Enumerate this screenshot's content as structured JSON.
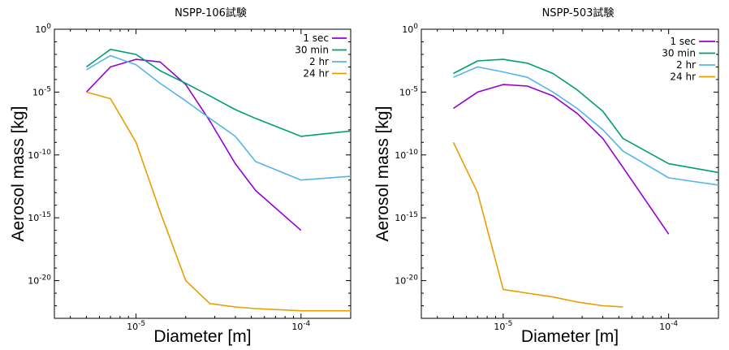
{
  "chart_data": [
    {
      "type": "line",
      "title": "NSPP-106試験",
      "xlabel": "Diameter [m]",
      "ylabel": "Aerosol mass [kg]",
      "x_scale": "log",
      "y_scale": "log",
      "xlim": [
        3.2e-06,
        0.0002
      ],
      "ylim": [
        1e-23,
        1
      ],
      "x_ticks": [
        {
          "value": 1e-05,
          "base": "10",
          "exp": "-5"
        },
        {
          "value": 0.0001,
          "base": "10",
          "exp": "-4"
        }
      ],
      "y_ticks": [
        {
          "value": 1,
          "base": "10",
          "exp": "0"
        },
        {
          "value": 1e-05,
          "base": "10",
          "exp": "-5"
        },
        {
          "value": 1e-10,
          "base": "10",
          "exp": "-10"
        },
        {
          "value": 1e-15,
          "base": "10",
          "exp": "-15"
        },
        {
          "value": 1e-20,
          "base": "10",
          "exp": "-20"
        }
      ],
      "legend_position": "top-right",
      "x": [
        5e-06,
        7e-06,
        1e-05,
        1.4e-05,
        2e-05,
        2.8e-05,
        4e-05,
        5.3e-05,
        0.0001,
        0.0002
      ],
      "series": [
        {
          "name": "1 sec",
          "color": "#9400d3",
          "x": [
            5e-06,
            7e-06,
            1e-05,
            1.4e-05,
            2e-05,
            2.8e-05,
            4e-05,
            5.3e-05,
            0.0001
          ],
          "values": [
            1e-05,
            0.001,
            0.004,
            0.0025,
            4e-05,
            5e-08,
            2e-11,
            1.5e-13,
            1e-16
          ]
        },
        {
          "name": "30 min",
          "color": "#009e73",
          "x": [
            5e-06,
            7e-06,
            1e-05,
            1.4e-05,
            2e-05,
            2.8e-05,
            4e-05,
            5.3e-05,
            0.0001,
            0.0002
          ],
          "values": [
            0.001,
            0.025,
            0.01,
            0.0005,
            5e-05,
            5e-06,
            4e-07,
            8e-08,
            3e-09,
            8e-09
          ]
        },
        {
          "name": "2 hr",
          "color": "#56b4e9",
          "x": [
            5e-06,
            7e-06,
            1e-05,
            1.4e-05,
            2e-05,
            2.8e-05,
            4e-05,
            5.3e-05,
            0.0001,
            0.0002
          ],
          "values": [
            0.0006,
            0.008,
            0.0015,
            5e-05,
            2e-06,
            8e-08,
            3e-09,
            3e-11,
            1e-12,
            2e-12
          ]
        },
        {
          "name": "24 hr",
          "color": "#e69f00",
          "x": [
            5e-06,
            7e-06,
            1e-05,
            1.4e-05,
            2e-05,
            2.8e-05,
            4e-05,
            5.3e-05,
            0.0001,
            0.0002
          ],
          "values": [
            1e-05,
            3e-06,
            1e-09,
            3e-15,
            1e-20,
            1.5e-22,
            8e-23,
            6e-23,
            4e-23,
            4e-23
          ]
        }
      ]
    },
    {
      "type": "line",
      "title": "NSPP-503試験",
      "xlabel": "Diameter [m]",
      "ylabel": "Aerosol mass [kg]",
      "x_scale": "log",
      "y_scale": "log",
      "xlim": [
        3.2e-06,
        0.0002
      ],
      "ylim": [
        1e-23,
        1
      ],
      "x_ticks": [
        {
          "value": 1e-05,
          "base": "10",
          "exp": "-5"
        },
        {
          "value": 0.0001,
          "base": "10",
          "exp": "-4"
        }
      ],
      "y_ticks": [
        {
          "value": 1,
          "base": "10",
          "exp": "0"
        },
        {
          "value": 1e-05,
          "base": "10",
          "exp": "-5"
        },
        {
          "value": 1e-10,
          "base": "10",
          "exp": "-10"
        },
        {
          "value": 1e-15,
          "base": "10",
          "exp": "-15"
        },
        {
          "value": 1e-20,
          "base": "10",
          "exp": "-20"
        }
      ],
      "legend_position": "top-right",
      "x": [
        5e-06,
        7e-06,
        1e-05,
        1.4e-05,
        2e-05,
        2.8e-05,
        4e-05,
        5.3e-05,
        0.0001,
        0.0002
      ],
      "series": [
        {
          "name": "1 sec",
          "color": "#9400d3",
          "x": [
            5e-06,
            7e-06,
            1e-05,
            1.4e-05,
            2e-05,
            2.8e-05,
            4e-05,
            5.3e-05,
            0.0001
          ],
          "values": [
            5e-07,
            1e-05,
            4e-05,
            3e-05,
            5e-06,
            2e-07,
            2e-09,
            1e-11,
            5e-17
          ]
        },
        {
          "name": "30 min",
          "color": "#009e73",
          "x": [
            5e-06,
            7e-06,
            1e-05,
            1.4e-05,
            2e-05,
            2.8e-05,
            4e-05,
            5.3e-05,
            0.0001,
            0.0002
          ],
          "values": [
            0.0003,
            0.003,
            0.004,
            0.002,
            0.0003,
            1.5e-05,
            3e-07,
            2e-09,
            2e-11,
            4e-12
          ]
        },
        {
          "name": "2 hr",
          "color": "#56b4e9",
          "x": [
            5e-06,
            7e-06,
            1e-05,
            1.4e-05,
            2e-05,
            2.8e-05,
            4e-05,
            5.3e-05,
            0.0001,
            0.0002
          ],
          "values": [
            0.00015,
            0.001,
            0.0004,
            0.00015,
            1e-05,
            5e-07,
            1e-08,
            2e-10,
            1.5e-12,
            4e-13
          ]
        },
        {
          "name": "24 hr",
          "color": "#e69f00",
          "x": [
            5e-06,
            7e-06,
            1e-05,
            1.4e-05,
            2e-05,
            2.8e-05,
            4e-05,
            5.3e-05
          ],
          "values": [
            1e-09,
            1e-13,
            2e-21,
            1e-21,
            5e-22,
            2e-22,
            1e-22,
            8e-23
          ]
        }
      ]
    }
  ]
}
